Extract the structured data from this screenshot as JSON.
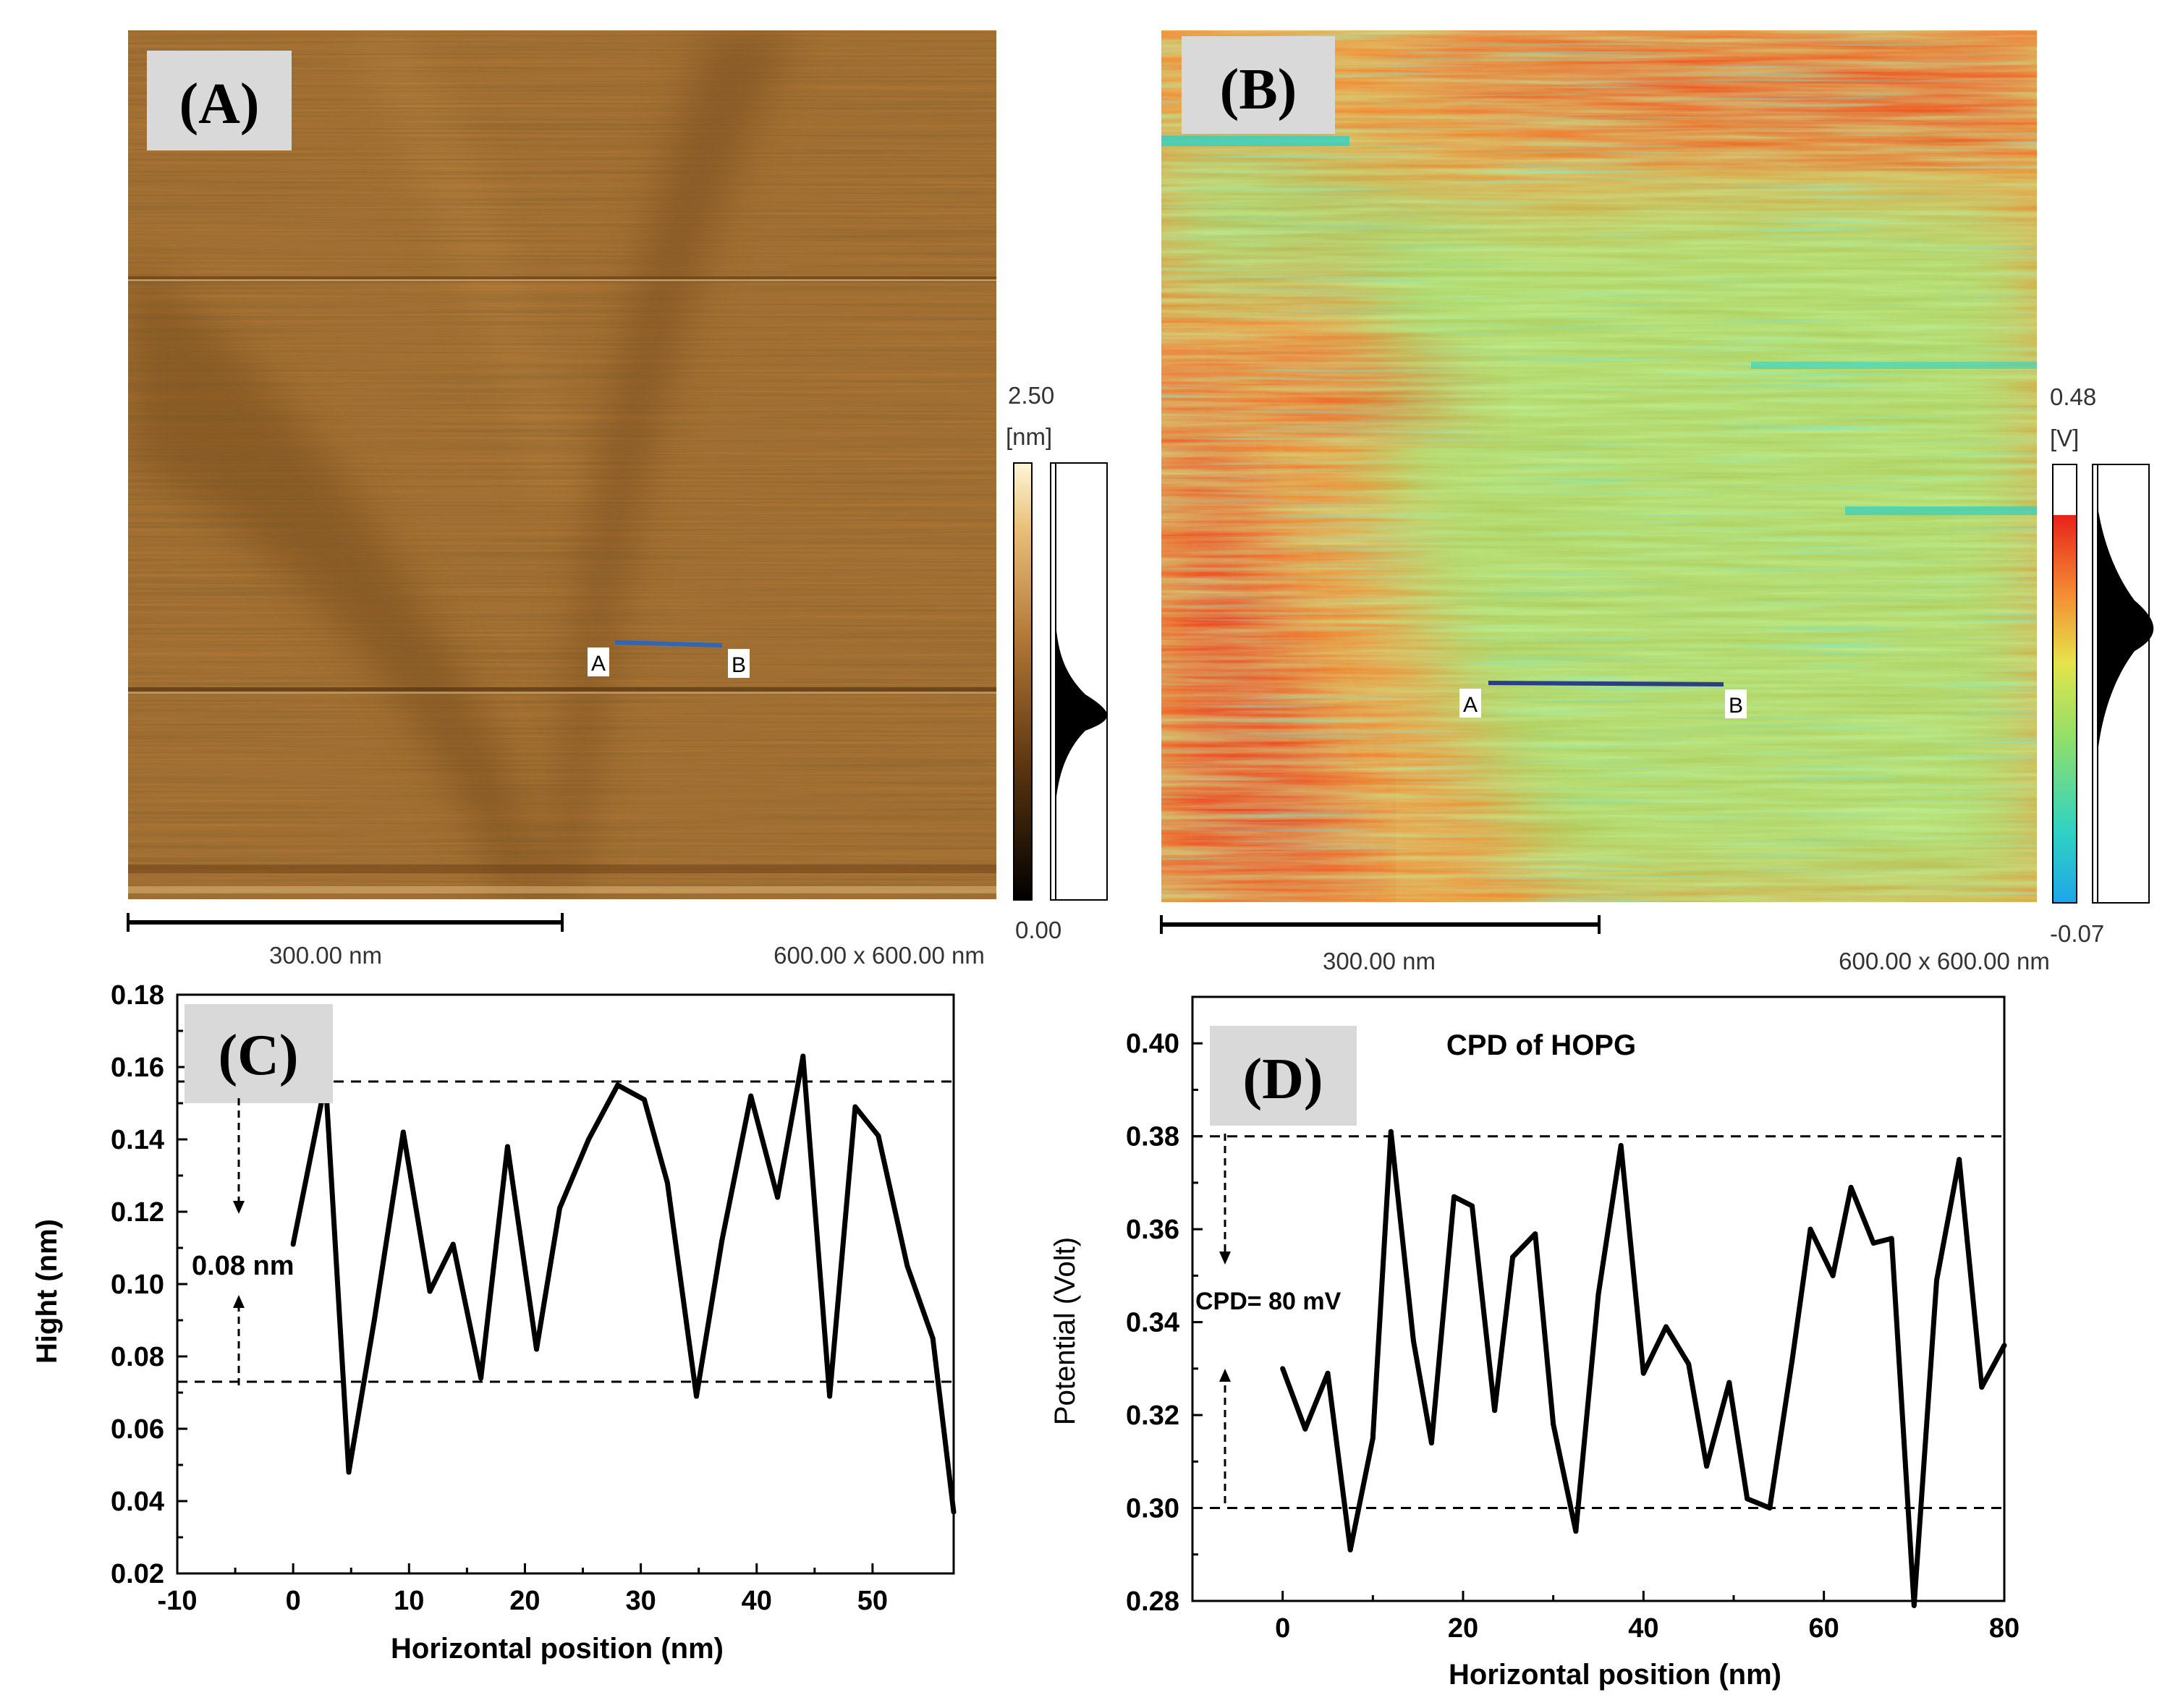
{
  "colors": {
    "afm_dark": "#3a220c",
    "afm_mid": "#b27836",
    "afm_light": "#fff1c8",
    "kpfm_red": "#ee2b12",
    "kpfm_orange": "#f48a33",
    "kpfm_green": "#9ee26c",
    "kpfm_cyan": "#2fd2c4",
    "profile_line": "#2a3f8a",
    "plot_line": "#000000",
    "label_box": "#d9d9d9"
  },
  "panel_a": {
    "label": "(A)",
    "scalebar_label": "300.00 nm",
    "scan_size": "600.00 x 600.00 nm",
    "colorbar_max": "2.50",
    "colorbar_unit": "[nm]",
    "colorbar_min": "0.00",
    "marker_a": "A",
    "marker_b": "B"
  },
  "panel_b": {
    "label": "(B)",
    "scalebar_label": "300.00 nm",
    "scan_size": "600.00 x 600.00 nm",
    "colorbar_max": "0.48",
    "colorbar_unit": "[V]",
    "colorbar_min": "-0.07",
    "marker_a": "A",
    "marker_b": "B"
  },
  "chart_data": [
    {
      "id": "C",
      "type": "line",
      "label": "(C)",
      "title": "",
      "xlabel": "Horizontal position (nm)",
      "ylabel": "Hight (nm)",
      "xlim": [
        -10,
        57
      ],
      "ylim": [
        0.02,
        0.18
      ],
      "xticks": [
        -10,
        0,
        10,
        20,
        30,
        40,
        50
      ],
      "yticks": [
        0.02,
        0.04,
        0.06,
        0.08,
        0.1,
        0.12,
        0.14,
        0.16,
        0.18
      ],
      "ytick_labels": [
        "0.02",
        "0.04",
        "0.06",
        "0.08",
        "0.10",
        "0.12",
        "0.14",
        "0.16",
        "0.18"
      ],
      "x": [
        0,
        2.8,
        4.8,
        7,
        9.5,
        11.8,
        13.8,
        16.2,
        18.5,
        21,
        23,
        25.5,
        28,
        30.3,
        32.3,
        34.8,
        37,
        39.5,
        41.8,
        44,
        46.3,
        48.5,
        50.5,
        53,
        55.2,
        57
      ],
      "values": [
        0.111,
        0.156,
        0.048,
        0.09,
        0.142,
        0.098,
        0.111,
        0.074,
        0.138,
        0.082,
        0.121,
        0.14,
        0.155,
        0.151,
        0.128,
        0.069,
        0.112,
        0.152,
        0.124,
        0.163,
        0.069,
        0.149,
        0.141,
        0.105,
        0.085,
        0.037
      ],
      "reference_lines": [
        0.156,
        0.073
      ],
      "annotation": "0.08 nm"
    },
    {
      "id": "D",
      "type": "line",
      "label": "(D)",
      "title": "CPD of HOPG",
      "xlabel": "Horizontal position (nm)",
      "ylabel": "Potential (Volt)",
      "xlim": [
        -10,
        80
      ],
      "ylim": [
        0.28,
        0.41
      ],
      "xticks": [
        0,
        20,
        40,
        60,
        80
      ],
      "yticks": [
        0.28,
        0.3,
        0.32,
        0.34,
        0.36,
        0.38,
        0.4
      ],
      "ytick_labels": [
        "0.28",
        "0.30",
        "0.32",
        "0.34",
        "0.36",
        "0.38",
        "0.40"
      ],
      "x": [
        0,
        2.5,
        5,
        7.5,
        10,
        12,
        14.5,
        16.5,
        19,
        21,
        23.5,
        25.5,
        28,
        30,
        32.5,
        35,
        37.5,
        40,
        42.5,
        45,
        47,
        49.5,
        51.5,
        54,
        56.5,
        58.5,
        61,
        63,
        65.5,
        67.5,
        70,
        72.5,
        75,
        77.5,
        80
      ],
      "values": [
        0.33,
        0.317,
        0.329,
        0.291,
        0.315,
        0.381,
        0.336,
        0.314,
        0.367,
        0.365,
        0.321,
        0.354,
        0.359,
        0.318,
        0.295,
        0.346,
        0.378,
        0.329,
        0.339,
        0.331,
        0.309,
        0.327,
        0.302,
        0.3,
        0.332,
        0.36,
        0.35,
        0.369,
        0.357,
        0.358,
        0.279,
        0.349,
        0.375,
        0.326,
        0.335
      ],
      "reference_lines": [
        0.38,
        0.3
      ],
      "annotation": "CPD= 80 mV"
    }
  ]
}
